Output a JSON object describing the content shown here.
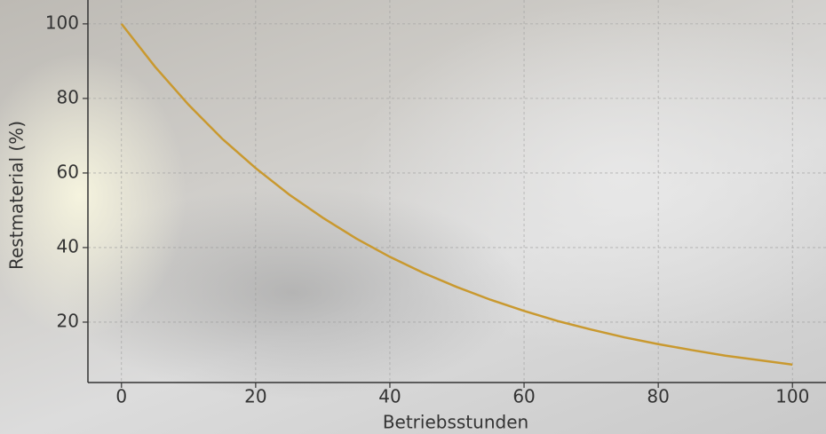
{
  "chart_data": {
    "type": "line",
    "x_label": "Betriebsstunden",
    "y_label": "Restmaterial (%)",
    "x": [
      0,
      5,
      10,
      15,
      20,
      25,
      30,
      35,
      40,
      45,
      50,
      55,
      60,
      65,
      70,
      75,
      80,
      85,
      90,
      95,
      100
    ],
    "series": [
      {
        "color": "#c9992f",
        "values": [
          100,
          88.5,
          78.3,
          69.2,
          61.3,
          54.2,
          48.0,
          42.4,
          37.5,
          33.2,
          29.4,
          26.0,
          23.0,
          20.3,
          18.0,
          15.9,
          14.1,
          12.5,
          11.0,
          9.8,
          8.6
        ]
      }
    ],
    "xlim": [
      -5,
      105
    ],
    "ylim": [
      3.8,
      106.4
    ],
    "xticks": [
      0,
      20,
      40,
      60,
      80,
      100
    ],
    "yticks": [
      20,
      40,
      60,
      80,
      100
    ],
    "grid": true
  }
}
